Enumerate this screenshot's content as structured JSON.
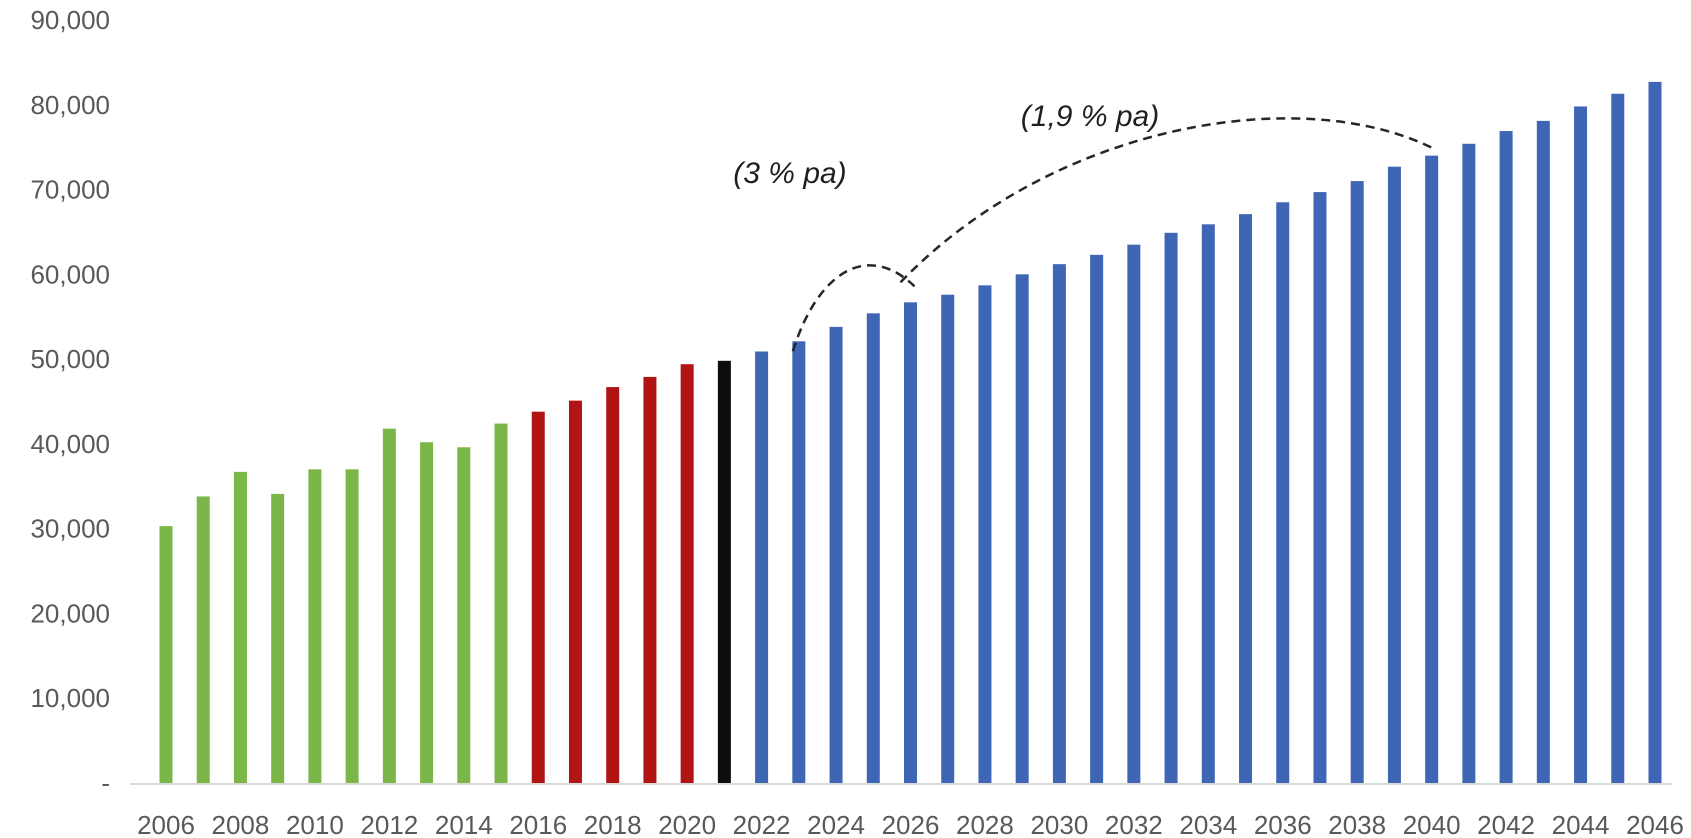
{
  "chart_data": {
    "type": "bar",
    "title": "",
    "xlabel": "",
    "ylabel": "",
    "ylim": [
      0,
      90000
    ],
    "y_ticks": [
      "-",
      "10,000",
      "20,000",
      "30,000",
      "40,000",
      "50,000",
      "60,000",
      "70,000",
      "80,000",
      "90,000"
    ],
    "grid": false,
    "legend": "none",
    "categories": [
      2006,
      2007,
      2008,
      2009,
      2010,
      2011,
      2012,
      2013,
      2014,
      2015,
      2016,
      2017,
      2018,
      2019,
      2020,
      2021,
      2022,
      2023,
      2024,
      2025,
      2026,
      2027,
      2028,
      2029,
      2030,
      2031,
      2032,
      2033,
      2034,
      2035,
      2036,
      2037,
      2038,
      2039,
      2040,
      2041,
      2042,
      2043,
      2044,
      2045,
      2046
    ],
    "x_tick_labels": [
      "2006",
      "2008",
      "2010",
      "2012",
      "2014",
      "2016",
      "2018",
      "2020",
      "2022",
      "2024",
      "2026",
      "2028",
      "2030",
      "2032",
      "2034",
      "2036",
      "2038",
      "2040",
      "2042",
      "2044",
      "2046"
    ],
    "values": [
      30300,
      33800,
      36700,
      34100,
      37000,
      37000,
      41800,
      40200,
      39600,
      42400,
      43800,
      45100,
      46700,
      47900,
      49400,
      49800,
      50900,
      52100,
      53800,
      55400,
      56700,
      57600,
      58700,
      60000,
      61200,
      62300,
      63500,
      64900,
      65900,
      67100,
      68500,
      69700,
      71000,
      72700,
      74000,
      75400,
      76900,
      78100,
      79800,
      81300,
      82700
    ],
    "bar_colors": [
      "#7ab648",
      "#7ab648",
      "#7ab648",
      "#7ab648",
      "#7ab648",
      "#7ab648",
      "#7ab648",
      "#7ab648",
      "#7ab648",
      "#7ab648",
      "#b01414",
      "#b01414",
      "#b01414",
      "#b01414",
      "#b01414",
      "#0d0d0d",
      "#3e66b5",
      "#3e66b5",
      "#3e66b5",
      "#3e66b5",
      "#3e66b5",
      "#3e66b5",
      "#3e66b5",
      "#3e66b5",
      "#3e66b5",
      "#3e66b5",
      "#3e66b5",
      "#3e66b5",
      "#3e66b5",
      "#3e66b5",
      "#3e66b5",
      "#3e66b5",
      "#3e66b5",
      "#3e66b5",
      "#3e66b5",
      "#3e66b5",
      "#3e66b5",
      "#3e66b5",
      "#3e66b5",
      "#3e66b5",
      "#3e66b5"
    ],
    "annotations": [
      {
        "text": "(3 % pa)",
        "from_year": 2023,
        "to_year": 2026
      },
      {
        "text": "(1,9 % pa)",
        "from_year": 2026,
        "to_year": 2040
      }
    ]
  }
}
